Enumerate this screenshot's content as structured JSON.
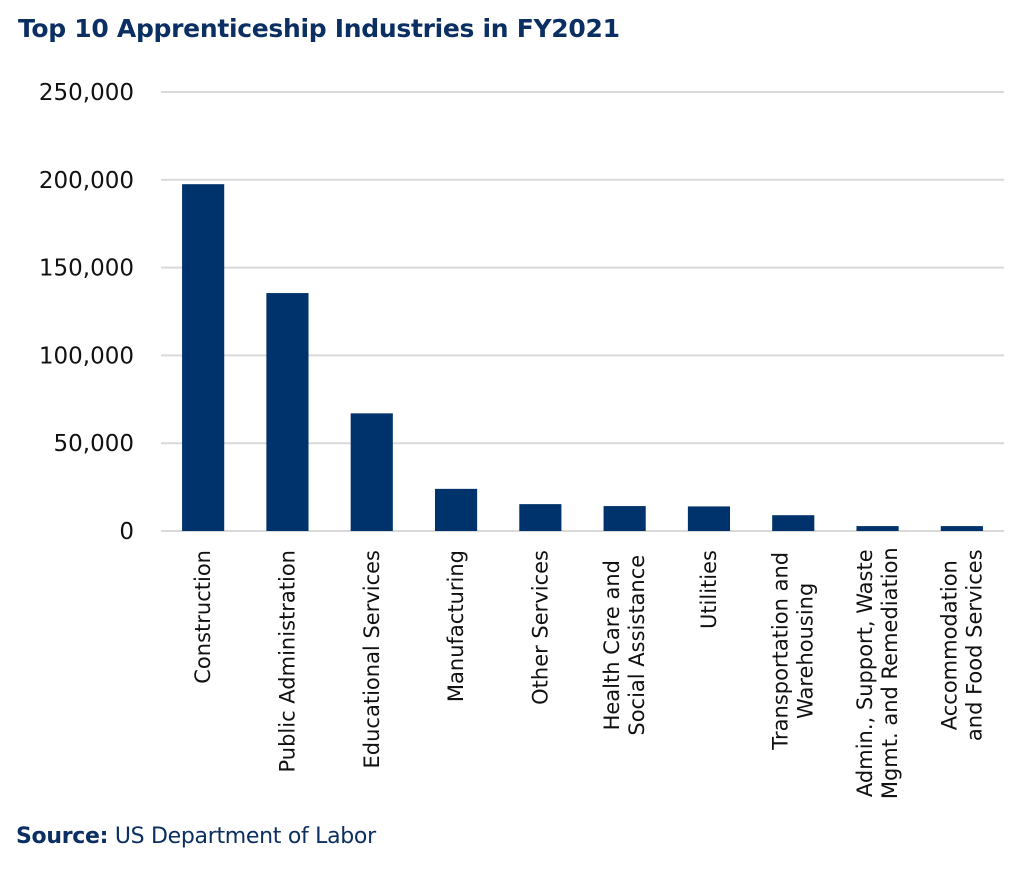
{
  "header": {
    "title": "Top 10 Apprenticeship Industries in FY2021"
  },
  "footer": {
    "source_label": "Source:",
    "source_text": " US Department of Labor"
  },
  "colors": {
    "bar": "#00336b",
    "title": "#0b2f62",
    "grid": "#d9d9d9",
    "text": "#111111"
  },
  "chart_data": {
    "type": "bar",
    "title": "Top 10 Apprenticeship Industries in FY2021",
    "xlabel": "",
    "ylabel": "",
    "ylim": [
      0,
      250000
    ],
    "yticks": [
      0,
      50000,
      100000,
      150000,
      200000,
      250000
    ],
    "ytick_labels": [
      "0",
      "50,000",
      "100,000",
      "150,000",
      "200,000",
      "250,000"
    ],
    "grid": true,
    "legend": "none",
    "categories": [
      "Construction",
      "Public Administration",
      "Educational Services",
      "Manufacturing",
      "Other Services",
      "Health Care and Social Assistance",
      "Utilities",
      "Transportation and Warehousing",
      "Admin., Support, Waste Mgmt. and Remediation",
      "Accommodation and Food Services"
    ],
    "category_label_lines": [
      [
        "Construction"
      ],
      [
        "Public Administration"
      ],
      [
        "Educational Services"
      ],
      [
        "Manufacturing"
      ],
      [
        "Other Services"
      ],
      [
        "Health Care and",
        "Social Assistance"
      ],
      [
        "Utilities"
      ],
      [
        "Transportation and",
        "Warehousing"
      ],
      [
        "Admin., Support, Waste",
        "Mgmt. and Remediation"
      ],
      [
        "Accommodation",
        "and Food Services"
      ]
    ],
    "values": [
      197500,
      135500,
      67000,
      24000,
      15300,
      14200,
      14000,
      9000,
      2800,
      2800
    ],
    "source": "US Department of Labor"
  }
}
